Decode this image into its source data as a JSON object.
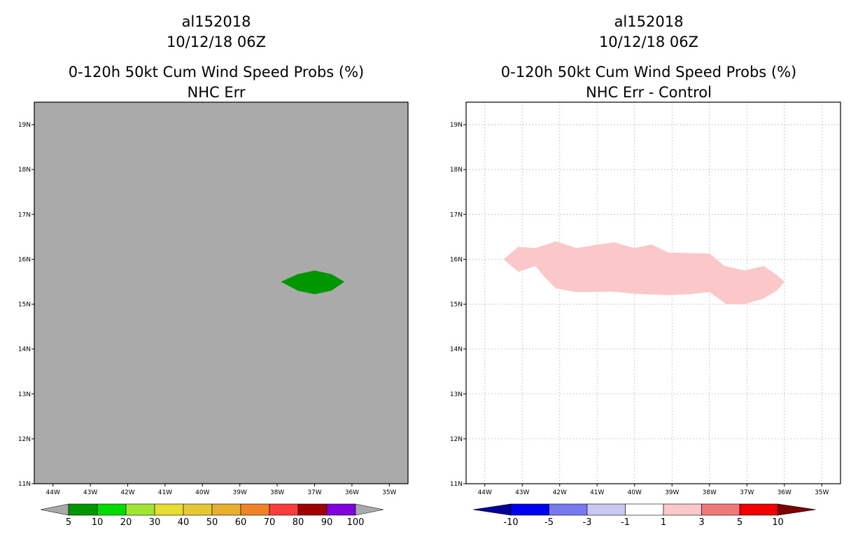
{
  "chart_data": [
    {
      "type": "heatmap",
      "storm_id": "al152018",
      "init_time": "10/12/18 06Z",
      "title": "0-120h 50kt Cum Wind Speed Probs (%)",
      "subtitle": "NHC Err",
      "background_color": "#aaaaaa",
      "grid": false,
      "lon_range": [
        -44.5,
        -34.5
      ],
      "lat_range": [
        11,
        19.5
      ],
      "x_ticks": [
        -44,
        -43,
        -42,
        -41,
        -40,
        -39,
        -38,
        -37,
        -36,
        -35
      ],
      "x_tick_labels": [
        "44W",
        "43W",
        "42W",
        "41W",
        "40W",
        "39W",
        "38W",
        "37W",
        "36W",
        "35W"
      ],
      "y_ticks": [
        11,
        12,
        13,
        14,
        15,
        16,
        17,
        18,
        19
      ],
      "y_tick_labels": [
        "11N",
        "12N",
        "13N",
        "14N",
        "15N",
        "16N",
        "17N",
        "18N",
        "19N"
      ],
      "regions": [
        {
          "name": "5-10%",
          "color": "#009600",
          "lonlat": [
            [
              -37.9,
              15.5
            ],
            [
              -37.45,
              15.67
            ],
            [
              -37.0,
              15.75
            ],
            [
              -36.55,
              15.67
            ],
            [
              -36.2,
              15.5
            ],
            [
              -36.55,
              15.3
            ],
            [
              -37.0,
              15.22
            ],
            [
              -37.45,
              15.3
            ]
          ]
        }
      ],
      "colorbar": {
        "labels": [
          "5",
          "10",
          "20",
          "30",
          "40",
          "50",
          "60",
          "70",
          "80",
          "90",
          "100"
        ],
        "colors": [
          "#009600",
          "#00dc00",
          "#a0e632",
          "#e6dc32",
          "#e6c832",
          "#e6af2d",
          "#f08228",
          "#fa3c3c",
          "#a00000",
          "#8200dc"
        ],
        "low_color": "#aaaaaa",
        "high_color": "#aaaaaa"
      }
    },
    {
      "type": "heatmap",
      "storm_id": "al152018",
      "init_time": "10/12/18 06Z",
      "title": "0-120h 50kt Cum Wind Speed Probs (%)",
      "subtitle": "NHC Err - Control",
      "background_color": "#ffffff",
      "grid": true,
      "lon_range": [
        -44.5,
        -34.5
      ],
      "lat_range": [
        11,
        19.5
      ],
      "x_ticks": [
        -44,
        -43,
        -42,
        -41,
        -40,
        -39,
        -38,
        -37,
        -36,
        -35
      ],
      "x_tick_labels": [
        "44W",
        "43W",
        "42W",
        "41W",
        "40W",
        "39W",
        "38W",
        "37W",
        "36W",
        "35W"
      ],
      "y_ticks": [
        11,
        12,
        13,
        14,
        15,
        16,
        17,
        18,
        19
      ],
      "y_tick_labels": [
        "11N",
        "12N",
        "13N",
        "14N",
        "15N",
        "16N",
        "17N",
        "18N",
        "19N"
      ],
      "regions": [
        {
          "name": "1-3",
          "color": "#fac8c8",
          "lonlat": [
            [
              -43.5,
              16.0
            ],
            [
              -43.1,
              16.28
            ],
            [
              -42.65,
              16.25
            ],
            [
              -42.1,
              16.4
            ],
            [
              -41.55,
              16.25
            ],
            [
              -40.55,
              16.38
            ],
            [
              -40.0,
              16.25
            ],
            [
              -39.55,
              16.33
            ],
            [
              -39.1,
              16.15
            ],
            [
              -38.0,
              16.13
            ],
            [
              -37.6,
              15.85
            ],
            [
              -37.05,
              15.75
            ],
            [
              -36.55,
              15.85
            ],
            [
              -36.2,
              15.65
            ],
            [
              -36.0,
              15.5
            ],
            [
              -36.2,
              15.3
            ],
            [
              -36.55,
              15.13
            ],
            [
              -37.05,
              15.0
            ],
            [
              -37.55,
              15.0
            ],
            [
              -38.0,
              15.27
            ],
            [
              -38.55,
              15.22
            ],
            [
              -39.1,
              15.2
            ],
            [
              -40.0,
              15.23
            ],
            [
              -40.6,
              15.28
            ],
            [
              -41.55,
              15.27
            ],
            [
              -42.1,
              15.35
            ],
            [
              -42.4,
              15.6
            ],
            [
              -42.65,
              15.85
            ],
            [
              -43.1,
              15.72
            ]
          ]
        }
      ],
      "colorbar": {
        "labels": [
          "-10",
          "-5",
          "-3",
          "-1",
          "1",
          "3",
          "5",
          "10"
        ],
        "colors": [
          "#0000f0",
          "#7878f0",
          "#c8c8f0",
          "#ffffff",
          "#fac8c8",
          "#f07878",
          "#f00000"
        ],
        "low_color": "#000096",
        "high_color": "#7d0000"
      }
    }
  ]
}
